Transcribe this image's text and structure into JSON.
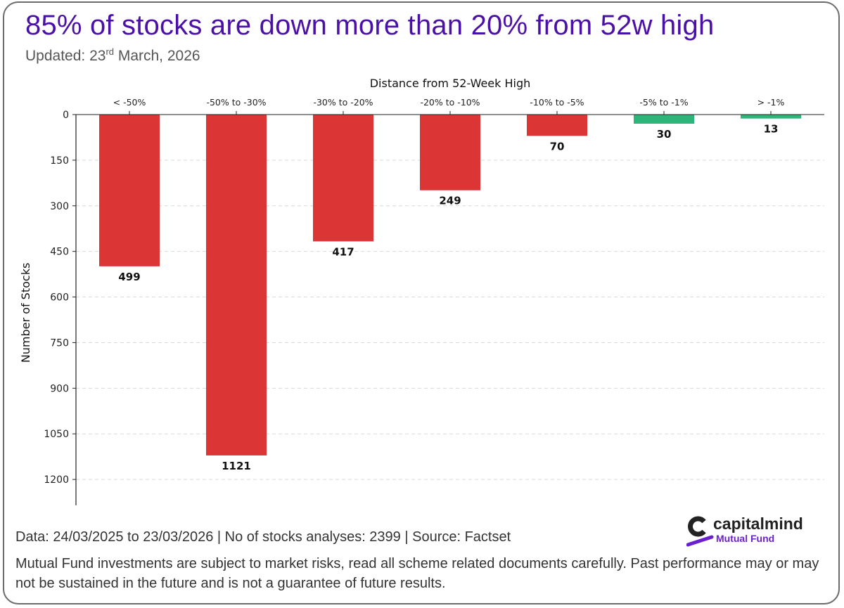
{
  "header": {
    "title": "85% of stocks are down more than 20% from 52w high",
    "updated_prefix": "Updated: 23",
    "updated_sup": "rd",
    "updated_suffix": " March, 2026"
  },
  "chart_data": {
    "type": "bar",
    "orientation": "inverted-y",
    "title": "Distance from 52-Week High",
    "xlabel": "Distance from 52-Week High",
    "ylabel": "Number of Stocks",
    "categories": [
      "< -50%",
      "-50% to -30%",
      "-30% to -20%",
      "-20% to -10%",
      "-10% to -5%",
      "-5% to -1%",
      "> -1%"
    ],
    "values": [
      499,
      1121,
      417,
      249,
      70,
      30,
      13
    ],
    "value_labels": [
      "499",
      "1121",
      "417",
      "249",
      "70",
      "30",
      "13"
    ],
    "bar_colors": [
      "#dc3535",
      "#dc3535",
      "#dc3535",
      "#dc3535",
      "#dc3535",
      "#2db57a",
      "#2db57a"
    ],
    "y_ticks": [
      0,
      150,
      300,
      450,
      600,
      750,
      900,
      1050,
      1200
    ],
    "y_tick_labels": [
      "0",
      "150",
      "300",
      "450",
      "600",
      "750",
      "900",
      "1050",
      "1200"
    ],
    "ylim": [
      0,
      1285
    ],
    "grid": true,
    "x_axis_position": "top"
  },
  "footer": {
    "data_line": "Data: 24/03/2025 to 23/03/2026 | No of stocks analyses: 2399 | Source: Factset",
    "disclaimer": "Mutual Fund investments are subject to market risks, read all scheme related documents carefully. Past performance may or may not be sustained in the future and is not a guarantee of future results."
  },
  "brand": {
    "name": "capitalmind",
    "sub": "Mutual Fund",
    "accent": "#6a1fd1",
    "title_color": "#4b10a8"
  }
}
